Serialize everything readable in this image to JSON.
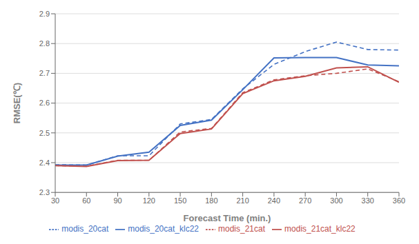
{
  "chart_data": {
    "type": "line",
    "xlabel": "Forecast Time (min.)",
    "ylabel": "RMSE(℃)",
    "x": [
      30,
      60,
      90,
      120,
      150,
      180,
      210,
      240,
      270,
      300,
      330,
      360
    ],
    "series": [
      {
        "name": "modis_20cat",
        "color": "#4472C4",
        "line_style": "dashed",
        "values": [
          2.393,
          2.392,
          2.423,
          2.423,
          2.53,
          2.545,
          2.648,
          2.73,
          2.773,
          2.805,
          2.78,
          2.778
        ]
      },
      {
        "name": "modis_21cat",
        "color": "#C0504D",
        "line_style": "dashed",
        "values": [
          2.39,
          2.388,
          2.408,
          2.408,
          2.503,
          2.515,
          2.635,
          2.678,
          2.692,
          2.7,
          2.715,
          2.672
        ]
      },
      {
        "name": "modis_20cat_klc22",
        "color": "#4472C4",
        "line_style": "solid",
        "values": [
          2.392,
          2.392,
          2.422,
          2.435,
          2.525,
          2.543,
          2.645,
          2.752,
          2.753,
          2.753,
          2.728,
          2.725
        ]
      },
      {
        "name": "modis_21cat_klc22",
        "color": "#C0504D",
        "line_style": "solid",
        "values": [
          2.39,
          2.387,
          2.407,
          2.408,
          2.498,
          2.513,
          2.632,
          2.675,
          2.69,
          2.718,
          2.722,
          2.67
        ]
      }
    ],
    "xlim": [
      30,
      360
    ],
    "xticks": [
      30,
      60,
      90,
      120,
      150,
      180,
      210,
      240,
      270,
      300,
      330,
      360
    ],
    "ylim": [
      2.3,
      2.9
    ],
    "yticks": [
      2.3,
      2.4,
      2.5,
      2.6,
      2.7,
      2.8,
      2.9
    ],
    "grid": "y",
    "legend": "bottom"
  }
}
